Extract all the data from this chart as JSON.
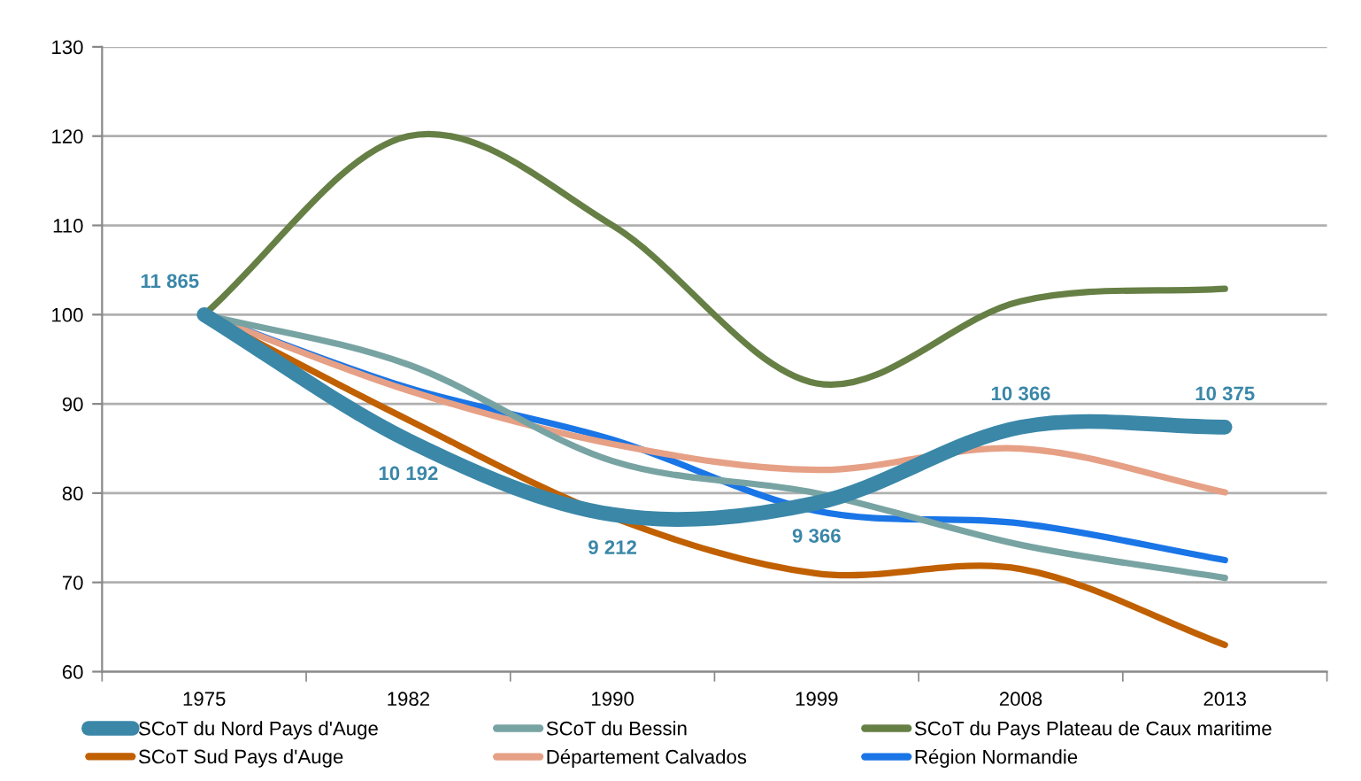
{
  "chart_data": {
    "type": "line",
    "categories": [
      "1975",
      "1982",
      "1990",
      "1999",
      "2008",
      "2013"
    ],
    "ylim": [
      60,
      130
    ],
    "yticks": [
      60,
      70,
      80,
      90,
      100,
      110,
      120,
      130
    ],
    "grid": "y",
    "legend": "bottom",
    "marker": "none",
    "line_style": "solid",
    "series": [
      {
        "name": "SCoT du Nord Pays d'Auge",
        "color": "#3a87a8",
        "values": [
          100,
          85.9,
          77.6,
          78.9,
          87.4,
          87.4
        ]
      },
      {
        "name": "SCoT du Bessin",
        "color": "#78a3a3",
        "values": [
          100,
          94.4,
          83.6,
          80.0,
          74.2,
          70.5
        ]
      },
      {
        "name": "SCoT du Pays Plateau de Caux maritime",
        "color": "#667f45",
        "values": [
          100,
          120.0,
          110.0,
          92.3,
          101.5,
          102.9
        ]
      },
      {
        "name": "SCoT Sud Pays d'Auge",
        "color": "#c06000",
        "values": [
          100,
          88.2,
          77.3,
          71.0,
          71.5,
          63.0
        ]
      },
      {
        "name": "Département Calvados",
        "color": "#e6a085",
        "values": [
          100,
          91.5,
          85.5,
          82.6,
          85.0,
          80.1
        ]
      },
      {
        "name": "Région Normandie",
        "color": "#1a75e6",
        "values": [
          100,
          91.8,
          86.0,
          78.0,
          76.6,
          72.5
        ]
      }
    ],
    "annotations": [
      {
        "text": "11 865",
        "x": "1975",
        "y": 100
      },
      {
        "text": "10 192",
        "x": "1982",
        "y": 85.9
      },
      {
        "text": "9 212",
        "x": "1990",
        "y": 77.6
      },
      {
        "text": "9 366",
        "x": "1999",
        "y": 78.9
      },
      {
        "text": "10 366",
        "x": "2008",
        "y": 87.4
      },
      {
        "text": "10 375",
        "x": "2013",
        "y": 87.4
      }
    ]
  }
}
